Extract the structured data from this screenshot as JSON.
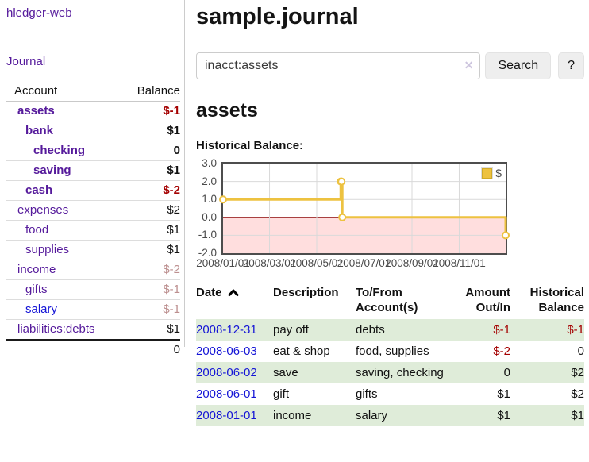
{
  "app": {
    "brand": "hledger-web"
  },
  "nav": {
    "journal": "Journal"
  },
  "sidebar": {
    "header": {
      "account": "Account",
      "balance": "Balance"
    },
    "accounts": [
      {
        "label": "assets",
        "balance": "$-1"
      },
      {
        "label": "bank",
        "balance": "$1"
      },
      {
        "label": "checking",
        "balance": "0"
      },
      {
        "label": "saving",
        "balance": "$1"
      },
      {
        "label": "cash",
        "balance": "$-2"
      },
      {
        "label": "expenses",
        "balance": "$2"
      },
      {
        "label": "food",
        "balance": "$1"
      },
      {
        "label": "supplies",
        "balance": "$1"
      },
      {
        "label": "income",
        "balance": "$-2"
      },
      {
        "label": "gifts",
        "balance": "$-1"
      },
      {
        "label": "salary",
        "balance": "$-1"
      },
      {
        "label": "liabilities:debts",
        "balance": "$1"
      }
    ],
    "total": "0"
  },
  "header": {
    "title": "sample.journal"
  },
  "search": {
    "value": "inacct:assets",
    "clear": "✕",
    "button": "Search",
    "help": "?"
  },
  "account_page": {
    "title": "assets",
    "section_label": "Historical Balance:"
  },
  "chart_data": {
    "type": "line",
    "step": true,
    "title": "Historical Balance:",
    "series": [
      {
        "name": "$",
        "points": [
          [
            "2008-01-01",
            1
          ],
          [
            "2008-06-01",
            2
          ],
          [
            "2008-06-02",
            2
          ],
          [
            "2008-06-03",
            0
          ],
          [
            "2008-12-31",
            -1
          ]
        ]
      }
    ],
    "xlim": [
      "2008-01-01",
      "2008-12-31"
    ],
    "ylim": [
      -2,
      3
    ],
    "yticks": [
      3.0,
      2.0,
      1.0,
      0.0,
      -1.0,
      -2.0
    ],
    "xticks": [
      {
        "date": "2008-01-01",
        "label": "2008/01/01"
      },
      {
        "date": "2008-03-01",
        "label": "2008/03/01"
      },
      {
        "date": "2008-05-01",
        "label": "2008/05/01"
      },
      {
        "date": "2008-07-01",
        "label": "2008/07/01"
      },
      {
        "date": "2008-09-01",
        "label": "2008/09/01"
      },
      {
        "date": "2008-11-01",
        "label": "2008/11/01"
      }
    ],
    "legend": {
      "position": "top-right",
      "label": "$"
    },
    "grid": true,
    "colors": {
      "series": "#edc240",
      "below_zero_fill": "#ffdede",
      "zero_line": "#8b0000",
      "grid": "#d9d9d9",
      "border": "#4d4d4d"
    }
  },
  "register": {
    "columns": {
      "date": "Date",
      "description": "Description",
      "accounts": "To/From Account(s)",
      "amount": "Amount Out/In",
      "balance": "Historical Balance"
    },
    "rows": [
      {
        "date": "2008-12-31",
        "description": "pay off",
        "accounts": "debts",
        "amount": "$-1",
        "balance": "$-1"
      },
      {
        "date": "2008-06-03",
        "description": "eat & shop",
        "accounts": "food, supplies",
        "amount": "$-2",
        "balance": "0"
      },
      {
        "date": "2008-06-02",
        "description": "save",
        "accounts": "saving, checking",
        "amount": "0",
        "balance": "$2"
      },
      {
        "date": "2008-06-01",
        "description": "gift",
        "accounts": "gifts",
        "amount": "$1",
        "balance": "$2"
      },
      {
        "date": "2008-01-01",
        "description": "income",
        "accounts": "salary",
        "amount": "$1",
        "balance": "$1"
      }
    ]
  }
}
